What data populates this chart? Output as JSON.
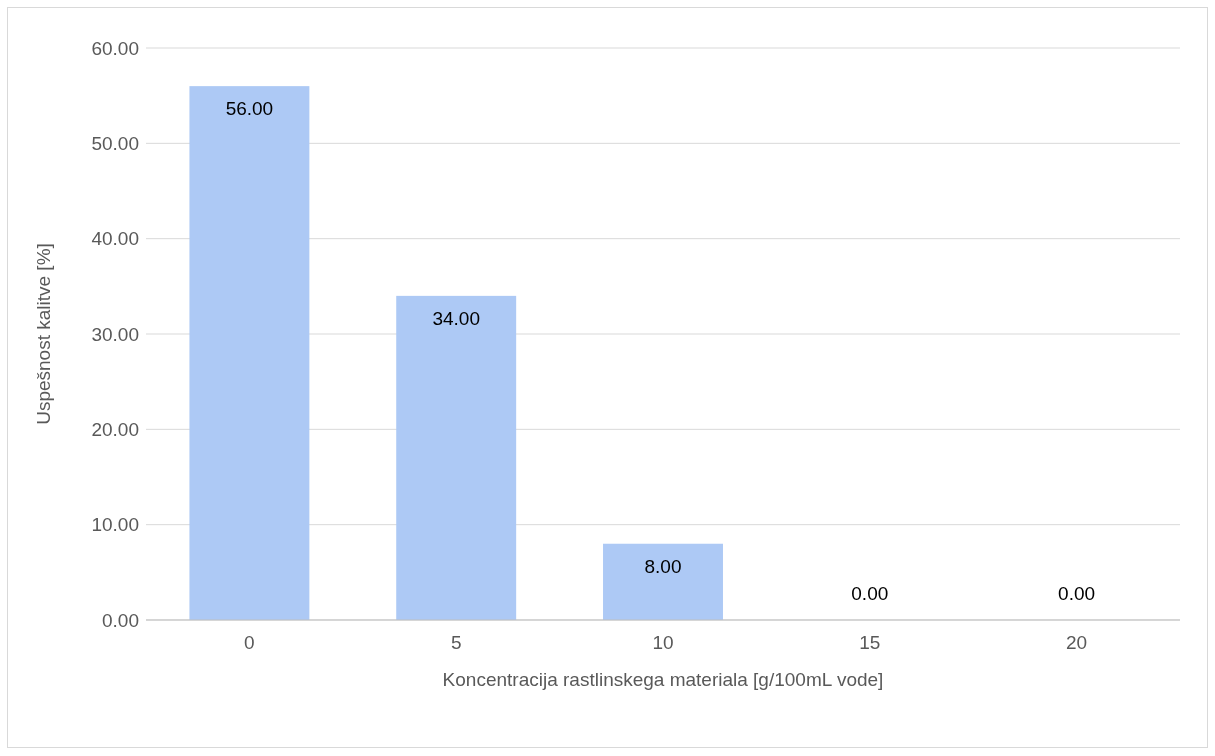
{
  "chart_data": {
    "type": "bar",
    "xlabel": "Koncentracija rastlinskega materiala [g/100mL vode]",
    "ylabel": "Uspešnost kalitve [%]",
    "categories": [
      "0",
      "5",
      "10",
      "15",
      "20"
    ],
    "values": [
      56,
      34,
      8,
      0,
      0
    ],
    "color": "#adc9f5",
    "ylim": [
      0,
      60
    ],
    "yticks": [
      {
        "value": 0,
        "label": "0.00"
      },
      {
        "value": 10,
        "label": "10.00"
      },
      {
        "value": 20,
        "label": "20.00"
      },
      {
        "value": 30,
        "label": "30.00"
      },
      {
        "value": 40,
        "label": "40.00"
      },
      {
        "value": 50,
        "label": "50.00"
      },
      {
        "value": 60,
        "label": "60.00"
      }
    ],
    "value_labels": [
      "56.00",
      "34.00",
      "8.00",
      "0.00",
      "0.00"
    ],
    "grid": "y"
  }
}
